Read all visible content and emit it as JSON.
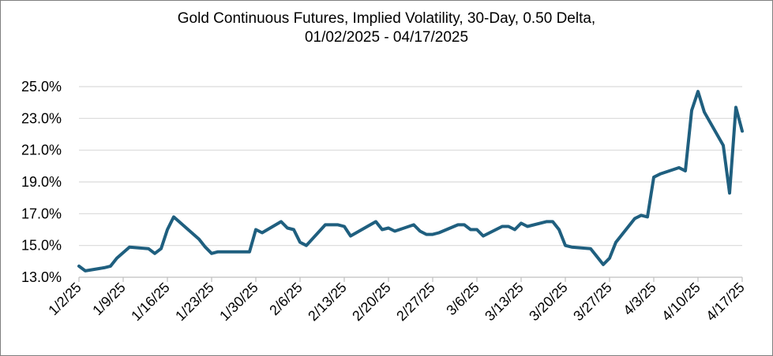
{
  "chart_data": {
    "type": "line",
    "title_line1": "Gold Continuous Futures, Implied Volatility,  30-Day, 0.50 Delta,",
    "title_line2": "01/02/2025 - 04/17/2025",
    "xlabel": "",
    "ylabel": "",
    "ylim": [
      13.0,
      25.0
    ],
    "y_ticks": [
      "13.0%",
      "15.0%",
      "17.0%",
      "19.0%",
      "21.0%",
      "23.0%",
      "25.0%"
    ],
    "x_ticks": [
      "1/2/25",
      "1/9/25",
      "1/16/25",
      "1/23/25",
      "1/30/25",
      "2/6/25",
      "2/13/25",
      "2/20/25",
      "2/27/25",
      "3/6/25",
      "3/13/25",
      "3/20/25",
      "3/27/25",
      "4/3/25",
      "4/10/25",
      "4/17/25"
    ],
    "grid": true,
    "line_color": "#1f5f7f",
    "series": [
      {
        "x": [
          "2025-01-02",
          "2025-01-03",
          "2025-01-06",
          "2025-01-07",
          "2025-01-08",
          "2025-01-10",
          "2025-01-13",
          "2025-01-14",
          "2025-01-15",
          "2025-01-16",
          "2025-01-17",
          "2025-01-21",
          "2025-01-22",
          "2025-01-23",
          "2025-01-24",
          "2025-01-27",
          "2025-01-28",
          "2025-01-29",
          "2025-01-30",
          "2025-01-31",
          "2025-02-03",
          "2025-02-04",
          "2025-02-05",
          "2025-02-06",
          "2025-02-07",
          "2025-02-10",
          "2025-02-11",
          "2025-02-12",
          "2025-02-13",
          "2025-02-14",
          "2025-02-18",
          "2025-02-19",
          "2025-02-20",
          "2025-02-21",
          "2025-02-24",
          "2025-02-25",
          "2025-02-26",
          "2025-02-27",
          "2025-02-28",
          "2025-03-03",
          "2025-03-04",
          "2025-03-05",
          "2025-03-06",
          "2025-03-07",
          "2025-03-10",
          "2025-03-11",
          "2025-03-12",
          "2025-03-13",
          "2025-03-14",
          "2025-03-17",
          "2025-03-18",
          "2025-03-19",
          "2025-03-20",
          "2025-03-21",
          "2025-03-24",
          "2025-03-25",
          "2025-03-26",
          "2025-03-27",
          "2025-03-28",
          "2025-03-31",
          "2025-04-01",
          "2025-04-02",
          "2025-04-03",
          "2025-04-04",
          "2025-04-07",
          "2025-04-08",
          "2025-04-09",
          "2025-04-10",
          "2025-04-11",
          "2025-04-14",
          "2025-04-15",
          "2025-04-16",
          "2025-04-17"
        ],
        "y": [
          13.7,
          13.4,
          13.6,
          13.7,
          14.2,
          14.9,
          14.8,
          14.5,
          14.8,
          16.0,
          16.8,
          15.4,
          14.9,
          14.5,
          14.6,
          14.6,
          14.6,
          14.6,
          16.0,
          15.8,
          16.5,
          16.1,
          16.0,
          15.2,
          15.0,
          16.3,
          16.3,
          16.3,
          16.2,
          15.6,
          16.5,
          16.0,
          16.1,
          15.9,
          16.3,
          15.9,
          15.7,
          15.7,
          15.8,
          16.3,
          16.3,
          16.0,
          16.0,
          15.6,
          16.2,
          16.2,
          16.0,
          16.4,
          16.2,
          16.5,
          16.5,
          16.0,
          15.0,
          14.9,
          14.8,
          14.3,
          13.8,
          14.2,
          15.2,
          16.7,
          16.9,
          16.8,
          19.3,
          19.5,
          19.9,
          19.7,
          23.5,
          24.7,
          23.4,
          21.3,
          18.3,
          23.7,
          22.2
        ]
      }
    ]
  }
}
